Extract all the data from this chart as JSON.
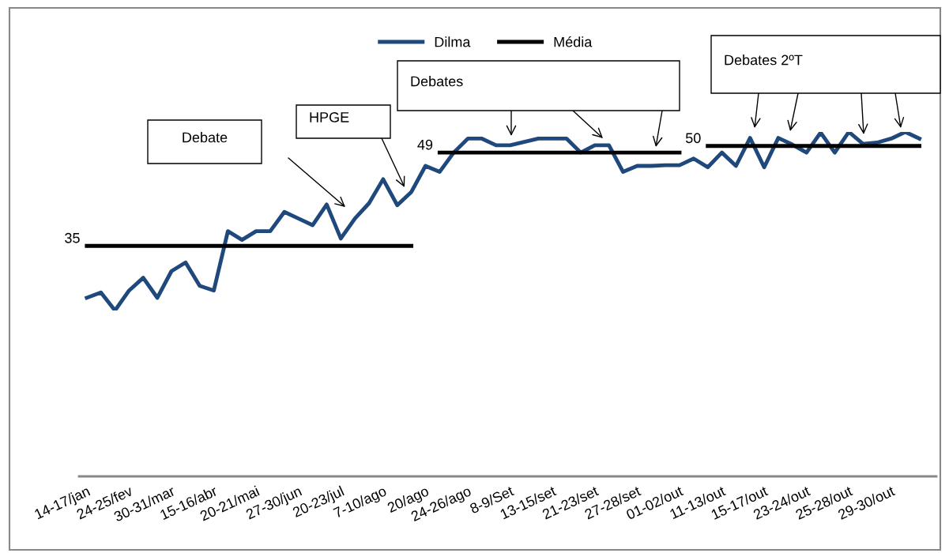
{
  "chart_data": {
    "type": "line",
    "categories": [
      "14-17/jan",
      null,
      null,
      "24-25/fev",
      null,
      null,
      "30-31/mar",
      null,
      null,
      "15-16/abr",
      null,
      null,
      "20-21/mai",
      null,
      null,
      "27-30/jun",
      null,
      null,
      "20-23/jul",
      null,
      null,
      "7-10/ago",
      null,
      null,
      "20/ago",
      null,
      null,
      "24-26/ago",
      null,
      null,
      "8-9/Set",
      null,
      null,
      "13-15/set",
      null,
      null,
      "21-23/set",
      null,
      null,
      "27-28/set",
      null,
      null,
      "01-02/out",
      null,
      null,
      "11-13/out",
      null,
      null,
      "15-17/out",
      null,
      null,
      "23-24/out",
      null,
      null,
      "25-28/out",
      null,
      null,
      "29-30/out",
      null,
      null
    ],
    "series": [
      {
        "name": "Dilma",
        "color": "#1f497d",
        "values": [
          27.2,
          28.0,
          25.3,
          28.3,
          30.2,
          27.2,
          31.2,
          32.5,
          29.0,
          28.3,
          37.2,
          35.9,
          37.2,
          37.2,
          40.1,
          39.1,
          38.1,
          41.2,
          36.1,
          39.1,
          41.4,
          45.0,
          41.1,
          43.1,
          47.0,
          46.1,
          49.0,
          51.1,
          51.1,
          50.1,
          50.1,
          50.6,
          51.1,
          51.1,
          51.1,
          49.0,
          50.1,
          50.1,
          46.1,
          47.0,
          47.0,
          47.1,
          47.1,
          48.1,
          46.8,
          49.0,
          47.0,
          51.2,
          46.8,
          51.2,
          50.2,
          49.0,
          52.0,
          49.0,
          52.1,
          50.3,
          50.5,
          51.1,
          52.1,
          51.1
        ]
      },
      {
        "name": "Média",
        "color": "#000000",
        "values": [
          35,
          35,
          35,
          35,
          35,
          35,
          35,
          35,
          35,
          35,
          35,
          35,
          35,
          35,
          35,
          35,
          35,
          35,
          35,
          35,
          35,
          35,
          35,
          35,
          null,
          49,
          49,
          49,
          49,
          49,
          49,
          49,
          49,
          49,
          49,
          49,
          49,
          49,
          49,
          49,
          49,
          49,
          49,
          null,
          50,
          50,
          50,
          50,
          50,
          50,
          50,
          50,
          50,
          50,
          50,
          50,
          50,
          50,
          50,
          50
        ],
        "value_labels": [
          "35",
          null,
          null,
          null,
          null,
          null,
          null,
          null,
          null,
          null,
          null,
          null,
          null,
          null,
          null,
          null,
          null,
          null,
          null,
          null,
          null,
          null,
          null,
          null,
          null,
          "49",
          null,
          null,
          null,
          null,
          null,
          null,
          null,
          null,
          null,
          null,
          null,
          null,
          null,
          null,
          null,
          null,
          null,
          null,
          "50",
          null,
          null,
          null,
          null,
          null,
          null,
          null,
          null,
          null,
          null,
          null,
          null,
          null,
          null,
          null
        ]
      }
    ],
    "tick_labels": "x",
    "legend": "top",
    "grid": false,
    "marker": "none",
    "line_style": "solid",
    "annotations": [
      "Debate",
      "HPGE",
      "Debates",
      "Debates 2ºT"
    ]
  }
}
